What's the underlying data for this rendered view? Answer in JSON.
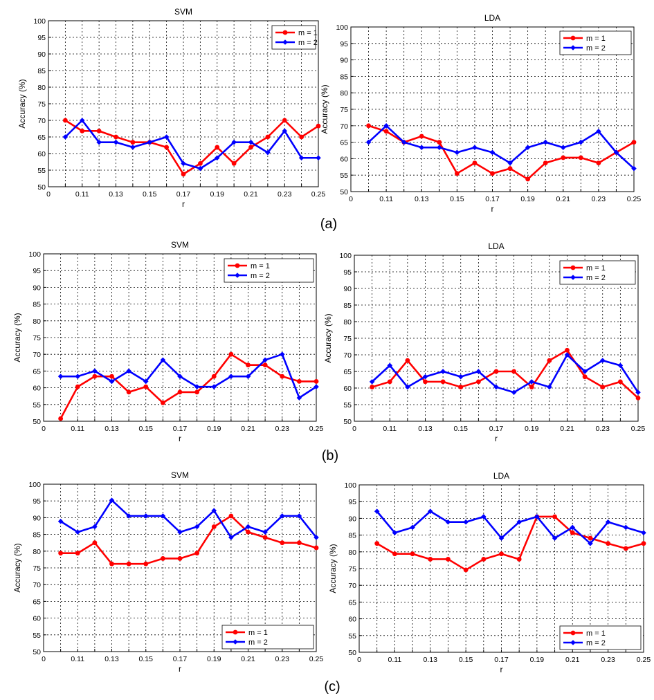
{
  "captions": [
    "(a)",
    "(b)",
    "(c)"
  ],
  "colors": {
    "m1": "#ff0000",
    "m2": "#0000ff"
  },
  "chart_data": [
    {
      "type": "line",
      "title": "SVM",
      "xlabel": "r",
      "ylabel": "Accuracy (%)",
      "xlim": [
        0.09,
        0.25
      ],
      "ylim": [
        50,
        100
      ],
      "xticks": [
        "0",
        "0.11",
        "0.13",
        "0.15",
        "0.17",
        "0.19",
        "0.21",
        "0.23",
        "0.25"
      ],
      "yticks": [
        "50",
        "55",
        "60",
        "65",
        "70",
        "75",
        "80",
        "85",
        "90",
        "95",
        "100"
      ],
      "legend": "top-right",
      "x": [
        0.1,
        0.11,
        0.12,
        0.13,
        0.14,
        0.15,
        0.16,
        0.17,
        0.18,
        0.19,
        0.2,
        0.21,
        0.22,
        0.23,
        0.24,
        0.25
      ],
      "series": [
        {
          "name": "m = 1",
          "values": [
            70,
            66.8,
            66.8,
            65,
            63.4,
            63.4,
            61.9,
            53.8,
            57,
            61.9,
            57,
            61.9,
            65,
            70,
            65,
            68.3
          ]
        },
        {
          "name": "m = 2",
          "values": [
            65,
            70,
            63.4,
            63.4,
            61.9,
            63.4,
            65,
            57,
            55.5,
            58.7,
            63.4,
            63.4,
            60.3,
            66.8,
            58.7,
            58.7
          ]
        }
      ]
    },
    {
      "type": "line",
      "title": "LDA",
      "xlabel": "r",
      "ylabel": "Accuracy (%)",
      "xlim": [
        0.09,
        0.25
      ],
      "ylim": [
        50,
        100
      ],
      "xticks": [
        "0",
        "0.11",
        "0.13",
        "0.15",
        "0.17",
        "0.19",
        "0.21",
        "0.23",
        "0.25"
      ],
      "yticks": [
        "50",
        "55",
        "60",
        "65",
        "70",
        "75",
        "80",
        "85",
        "90",
        "95",
        "100"
      ],
      "legend": "top-right",
      "x": [
        0.1,
        0.11,
        0.12,
        0.13,
        0.14,
        0.15,
        0.16,
        0.17,
        0.18,
        0.19,
        0.2,
        0.21,
        0.22,
        0.23,
        0.24,
        0.25
      ],
      "series": [
        {
          "name": "m = 1",
          "values": [
            70,
            68.3,
            65,
            66.8,
            65,
            55.5,
            58.7,
            55.5,
            57,
            53.8,
            58.7,
            60.3,
            60.3,
            58.7,
            61.9,
            65
          ]
        },
        {
          "name": "m = 2",
          "values": [
            65,
            70,
            65,
            63.4,
            63.4,
            61.9,
            63.4,
            61.9,
            58.7,
            63.4,
            65,
            63.4,
            65,
            68.3,
            61.9,
            57
          ]
        }
      ]
    },
    {
      "type": "line",
      "title": "SVM",
      "xlabel": "r",
      "ylabel": "Accuracy (%)",
      "xlim": [
        0.09,
        0.25
      ],
      "ylim": [
        50,
        100
      ],
      "xticks": [
        "0",
        "0.11",
        "0.13",
        "0.15",
        "0.17",
        "0.19",
        "0.21",
        "0.23",
        "0.25"
      ],
      "yticks": [
        "50",
        "55",
        "60",
        "65",
        "70",
        "75",
        "80",
        "85",
        "90",
        "95",
        "100"
      ],
      "legend": "top-right",
      "x": [
        0.1,
        0.11,
        0.12,
        0.13,
        0.14,
        0.15,
        0.16,
        0.17,
        0.18,
        0.19,
        0.2,
        0.21,
        0.22,
        0.23,
        0.24,
        0.25
      ],
      "series": [
        {
          "name": "m = 1",
          "values": [
            50.8,
            60.3,
            63.4,
            63.4,
            58.7,
            60.3,
            55.5,
            58.7,
            58.7,
            63.4,
            70,
            66.8,
            66.8,
            63.4,
            61.9,
            61.9
          ]
        },
        {
          "name": "m = 2",
          "values": [
            63.4,
            63.4,
            65,
            61.9,
            65,
            61.9,
            68.3,
            63.4,
            60.3,
            60.3,
            63.4,
            63.4,
            68.3,
            70,
            57,
            60.3
          ]
        }
      ]
    },
    {
      "type": "line",
      "title": "LDA",
      "xlabel": "r",
      "ylabel": "Accuracy (%)",
      "xlim": [
        0.09,
        0.25
      ],
      "ylim": [
        50,
        100
      ],
      "xticks": [
        "0",
        "0.11",
        "0.13",
        "0.15",
        "0.17",
        "0.19",
        "0.21",
        "0.23",
        "0.25"
      ],
      "yticks": [
        "50",
        "55",
        "60",
        "65",
        "70",
        "75",
        "80",
        "85",
        "90",
        "95",
        "100"
      ],
      "legend": "top-right",
      "x": [
        0.1,
        0.11,
        0.12,
        0.13,
        0.14,
        0.15,
        0.16,
        0.17,
        0.18,
        0.19,
        0.2,
        0.21,
        0.22,
        0.23,
        0.24,
        0.25
      ],
      "series": [
        {
          "name": "m = 1",
          "values": [
            60.3,
            61.9,
            68.3,
            61.9,
            61.9,
            60.3,
            61.9,
            65,
            65,
            60.3,
            68.3,
            71.4,
            63.4,
            60.3,
            61.9,
            57
          ]
        },
        {
          "name": "m = 2",
          "values": [
            61.9,
            66.8,
            60.3,
            63.4,
            65,
            63.4,
            65,
            60.3,
            58.7,
            61.9,
            60.3,
            70,
            65,
            68.3,
            66.8,
            58.7
          ]
        }
      ]
    },
    {
      "type": "line",
      "title": "SVM",
      "xlabel": "r",
      "ylabel": "Accuracy (%)",
      "xlim": [
        0.09,
        0.25
      ],
      "ylim": [
        50,
        100
      ],
      "xticks": [
        "0",
        "0.11",
        "0.13",
        "0.15",
        "0.17",
        "0.19",
        "0.21",
        "0.23",
        "0.25"
      ],
      "yticks": [
        "50",
        "55",
        "60",
        "65",
        "70",
        "75",
        "80",
        "85",
        "90",
        "95",
        "100"
      ],
      "legend": "bottom-right",
      "x": [
        0.1,
        0.11,
        0.12,
        0.13,
        0.14,
        0.15,
        0.16,
        0.17,
        0.18,
        0.19,
        0.2,
        0.21,
        0.22,
        0.23,
        0.24,
        0.25
      ],
      "series": [
        {
          "name": "m = 1",
          "values": [
            79.4,
            79.4,
            82.5,
            76.2,
            76.2,
            76.2,
            77.8,
            77.8,
            79.4,
            87.3,
            90.5,
            85.7,
            84.1,
            82.5,
            82.5,
            81
          ]
        },
        {
          "name": "m = 2",
          "values": [
            88.9,
            85.7,
            87.3,
            95.2,
            90.5,
            90.5,
            90.5,
            85.7,
            87.3,
            92.1,
            84.1,
            87.3,
            85.7,
            90.5,
            90.5,
            84.1
          ]
        }
      ]
    },
    {
      "type": "line",
      "title": "LDA",
      "xlabel": "r",
      "ylabel": "Accuracy (%)",
      "xlim": [
        0.09,
        0.25
      ],
      "ylim": [
        50,
        100
      ],
      "xticks": [
        "0",
        "0.11",
        "0.13",
        "0.15",
        "0.17",
        "0.19",
        "0.21",
        "0.23",
        "0.25"
      ],
      "yticks": [
        "50",
        "55",
        "60",
        "65",
        "70",
        "75",
        "80",
        "85",
        "90",
        "95",
        "100"
      ],
      "legend": "bottom-right",
      "x": [
        0.1,
        0.11,
        0.12,
        0.13,
        0.14,
        0.15,
        0.16,
        0.17,
        0.18,
        0.19,
        0.2,
        0.21,
        0.22,
        0.23,
        0.24,
        0.25
      ],
      "series": [
        {
          "name": "m = 1",
          "values": [
            82.5,
            79.4,
            79.4,
            77.8,
            77.8,
            74.6,
            77.8,
            79.4,
            77.8,
            90.5,
            90.5,
            85.7,
            84.1,
            82.5,
            81,
            82.5
          ]
        },
        {
          "name": "m = 2",
          "values": [
            92.1,
            85.7,
            87.3,
            92.1,
            88.9,
            88.9,
            90.5,
            84.1,
            88.9,
            90.5,
            84.1,
            87.3,
            82.5,
            88.9,
            87.3,
            85.7
          ]
        }
      ]
    }
  ]
}
